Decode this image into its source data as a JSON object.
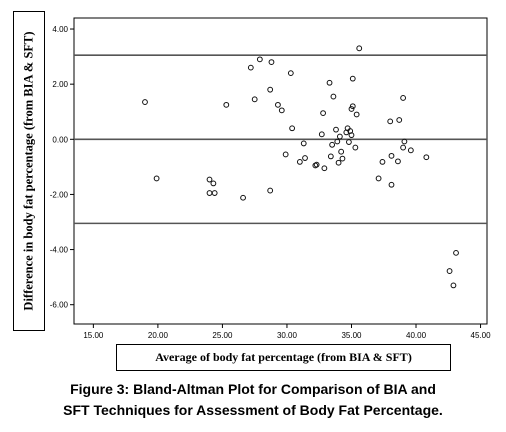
{
  "chart_data": {
    "type": "scatter",
    "xlabel": "Average of body fat percentage (from BIA & SFT)",
    "ylabel": "Difference in body fat percentage (from BIA & SFT)",
    "xlim": [
      13.5,
      45.5
    ],
    "ylim": [
      -6.7,
      4.4
    ],
    "x_ticks": [
      "15.00",
      "20.00",
      "25.00",
      "30.00",
      "35.00",
      "40.00",
      "45.00"
    ],
    "y_ticks": [
      "4.00",
      "2.00",
      "0.00",
      "-2.00",
      "-4.00",
      "-6.00"
    ],
    "reference_lines": [
      3.05,
      0.0,
      -3.05
    ],
    "grid": false,
    "points": [
      {
        "x": 19.0,
        "y": 1.35
      },
      {
        "x": 19.9,
        "y": -1.42
      },
      {
        "x": 24.0,
        "y": -1.46
      },
      {
        "x": 24.3,
        "y": -1.6
      },
      {
        "x": 24.0,
        "y": -1.95
      },
      {
        "x": 24.4,
        "y": -1.95
      },
      {
        "x": 25.3,
        "y": 1.25
      },
      {
        "x": 26.6,
        "y": -2.12
      },
      {
        "x": 27.2,
        "y": 2.6
      },
      {
        "x": 27.5,
        "y": 1.45
      },
      {
        "x": 27.9,
        "y": 2.9
      },
      {
        "x": 28.8,
        "y": 2.8
      },
      {
        "x": 28.7,
        "y": 1.8
      },
      {
        "x": 28.7,
        "y": -1.86
      },
      {
        "x": 29.3,
        "y": 1.25
      },
      {
        "x": 29.6,
        "y": 1.05
      },
      {
        "x": 29.9,
        "y": -0.55
      },
      {
        "x": 30.3,
        "y": 2.4
      },
      {
        "x": 30.4,
        "y": 0.4
      },
      {
        "x": 31.0,
        "y": -0.82
      },
      {
        "x": 31.3,
        "y": -0.15
      },
      {
        "x": 31.4,
        "y": -0.68
      },
      {
        "x": 32.2,
        "y": -0.95
      },
      {
        "x": 32.3,
        "y": -0.92
      },
      {
        "x": 32.7,
        "y": 0.18
      },
      {
        "x": 32.8,
        "y": 0.95
      },
      {
        "x": 32.9,
        "y": -1.05
      },
      {
        "x": 33.3,
        "y": 2.05
      },
      {
        "x": 33.4,
        "y": -0.62
      },
      {
        "x": 33.5,
        "y": -0.2
      },
      {
        "x": 33.6,
        "y": 1.55
      },
      {
        "x": 33.8,
        "y": 0.35
      },
      {
        "x": 33.9,
        "y": -0.08
      },
      {
        "x": 34.0,
        "y": -0.85
      },
      {
        "x": 34.1,
        "y": 0.1
      },
      {
        "x": 34.2,
        "y": -0.45
      },
      {
        "x": 34.3,
        "y": -0.7
      },
      {
        "x": 34.6,
        "y": 0.25
      },
      {
        "x": 34.7,
        "y": 0.4
      },
      {
        "x": 34.8,
        "y": -0.1
      },
      {
        "x": 34.9,
        "y": 0.3
      },
      {
        "x": 35.0,
        "y": 1.1
      },
      {
        "x": 35.0,
        "y": 0.15
      },
      {
        "x": 35.1,
        "y": 2.2
      },
      {
        "x": 35.1,
        "y": 1.2
      },
      {
        "x": 35.3,
        "y": -0.3
      },
      {
        "x": 35.4,
        "y": 0.9
      },
      {
        "x": 35.6,
        "y": 3.3
      },
      {
        "x": 37.1,
        "y": -1.42
      },
      {
        "x": 37.4,
        "y": -0.82
      },
      {
        "x": 38.0,
        "y": 0.65
      },
      {
        "x": 38.1,
        "y": -0.6
      },
      {
        "x": 38.1,
        "y": -1.65
      },
      {
        "x": 38.6,
        "y": -0.8
      },
      {
        "x": 38.7,
        "y": 0.7
      },
      {
        "x": 39.0,
        "y": 1.5
      },
      {
        "x": 39.0,
        "y": -0.3
      },
      {
        "x": 39.1,
        "y": -0.08
      },
      {
        "x": 39.6,
        "y": -0.4
      },
      {
        "x": 40.8,
        "y": -0.65
      },
      {
        "x": 42.6,
        "y": -4.78
      },
      {
        "x": 42.9,
        "y": -5.3
      },
      {
        "x": 43.1,
        "y": -4.12
      }
    ]
  },
  "caption_lines": [
    "Figure 3: Bland-Altman Plot for Comparison of BIA and",
    "SFT Techniques for Assessment of Body Fat Percentage."
  ]
}
